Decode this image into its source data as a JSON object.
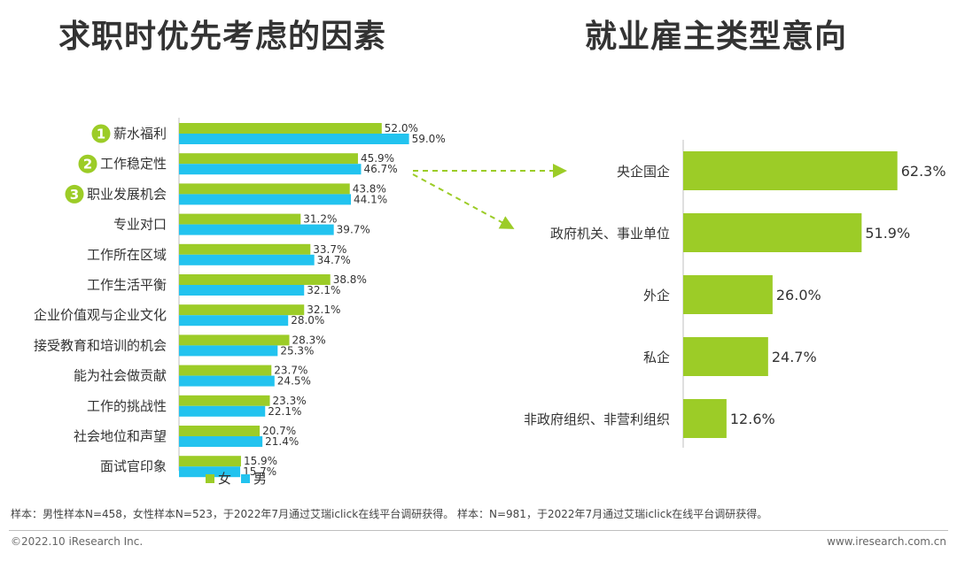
{
  "colors": {
    "female": "#9ccc27",
    "male": "#22c3ef",
    "accent": "#9ccc27"
  },
  "titles": {
    "left": "求职时优先考虑的因素",
    "right": "就业雇主类型意向"
  },
  "chart_data": [
    {
      "type": "bar",
      "orientation": "horizontal",
      "title": "求职时优先考虑的因素",
      "categories": [
        "薪水福利",
        "工作稳定性",
        "职业发展机会",
        "专业对口",
        "工作所在区域",
        "工作生活平衡",
        "企业价值观与企业文化",
        "接受教育和培训的机会",
        "能为社会做贡献",
        "工作的挑战性",
        "社会地位和声望",
        "面试官印象"
      ],
      "rank_badges": [
        "1",
        "2",
        "3"
      ],
      "series": [
        {
          "name": "女",
          "values": [
            52.0,
            45.9,
            43.8,
            31.2,
            33.7,
            38.8,
            32.1,
            28.3,
            23.7,
            23.3,
            20.7,
            15.9
          ]
        },
        {
          "name": "男",
          "values": [
            59.0,
            46.7,
            44.1,
            39.7,
            34.7,
            32.1,
            28.0,
            25.3,
            24.5,
            22.1,
            21.4,
            15.7
          ]
        }
      ],
      "unit": "%",
      "legend": "bottom"
    },
    {
      "type": "bar",
      "orientation": "horizontal",
      "title": "就业雇主类型意向",
      "categories": [
        "央企国企",
        "政府机关、事业单位",
        "外企",
        "私企",
        "非政府组织、非营利组织"
      ],
      "values": [
        62.3,
        51.9,
        26.0,
        24.7,
        12.6
      ],
      "unit": "%"
    }
  ],
  "note": "样本：男性样本N=458，女性样本N=523，于2022年7月通过艾瑞iclick在线平台调研获得。 样本：N=981，于2022年7月通过艾瑞iclick在线平台调研获得。",
  "footer": {
    "copyright": "©2022.10 iResearch Inc.",
    "website": "www.iresearch.com.cn"
  }
}
